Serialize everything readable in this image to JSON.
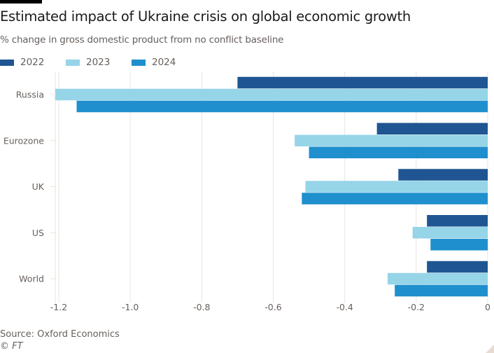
{
  "header": {
    "title": "Estimated impact of Ukraine crisis on global economic growth",
    "subtitle": "% change in gross domestic product from no conflict baseline"
  },
  "legend": [
    {
      "label": "2022",
      "color": "#1f5592"
    },
    {
      "label": "2023",
      "color": "#96d4e8"
    },
    {
      "label": "2024",
      "color": "#1f8fcd"
    }
  ],
  "footer": {
    "source": "Source: Oxford Economics",
    "copyright": "© FT"
  },
  "chart_data": {
    "type": "bar",
    "orientation": "horizontal",
    "title": "Estimated impact of Ukraine crisis on global economic growth",
    "subtitle": "% change in gross domestic product from no conflict baseline",
    "xlabel": "",
    "ylabel": "",
    "categories": [
      "Russia",
      "Eurozone",
      "UK",
      "US",
      "World"
    ],
    "series": [
      {
        "name": "2022",
        "color": "#1f5592",
        "values": [
          -0.7,
          -0.31,
          -0.25,
          -0.17,
          -0.17
        ]
      },
      {
        "name": "2023",
        "color": "#96d4e8",
        "values": [
          -1.21,
          -0.54,
          -0.51,
          -0.21,
          -0.28
        ]
      },
      {
        "name": "2024",
        "color": "#1f8fcd",
        "values": [
          -1.15,
          -0.5,
          -0.52,
          -0.16,
          -0.26
        ]
      }
    ],
    "xlim": [
      -1.2,
      0
    ],
    "xticks": [
      -1.2,
      -1.0,
      -0.8,
      -0.6,
      -0.4,
      -0.2,
      0
    ],
    "xtick_labels": [
      "-1.2",
      "-1.0",
      "-0.8",
      "-0.6",
      "-0.4",
      "-0.2",
      "0"
    ],
    "grid": "vertical",
    "grid_color": "#ebe4dd",
    "legend_position": "top-left",
    "source": "Source: Oxford Economics"
  }
}
